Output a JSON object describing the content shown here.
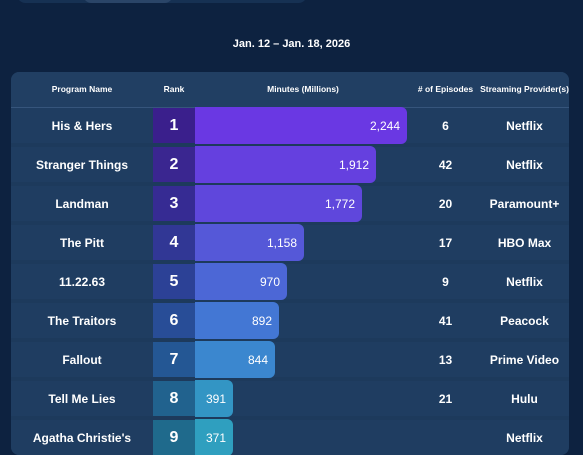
{
  "date_range": "Jan. 12 – Jan. 18, 2026",
  "headers": {
    "program": "Program Name",
    "rank": "Rank",
    "minutes": "Minutes (Millions)",
    "episodes": "# of Episodes",
    "provider": "Streaming Provider(s)"
  },
  "max_minutes": 2244,
  "rows": [
    {
      "program": "His & Hers",
      "rank": "1",
      "minutes": 2244,
      "minutes_label": "2,244",
      "episodes": "6",
      "provider": "Netflix",
      "rank_color": "#3a1f8c",
      "bar_color": "#6a38e3"
    },
    {
      "program": "Stranger Things",
      "rank": "2",
      "minutes": 1912,
      "minutes_label": "1,912",
      "episodes": "42",
      "provider": "Netflix",
      "rank_color": "#3a2690",
      "bar_color": "#6540df"
    },
    {
      "program": "Landman",
      "rank": "3",
      "minutes": 1772,
      "minutes_label": "1,772",
      "episodes": "20",
      "provider": "Paramount+",
      "rank_color": "#362b93",
      "bar_color": "#5f47dc"
    },
    {
      "program": "The Pitt",
      "rank": "4",
      "minutes": 1158,
      "minutes_label": "1,158",
      "episodes": "17",
      "provider": "HBO Max",
      "rank_color": "#313795",
      "bar_color": "#5558d8"
    },
    {
      "program": "11.22.63",
      "rank": "5",
      "minutes": 970,
      "minutes_label": "970",
      "episodes": "9",
      "provider": "Netflix",
      "rank_color": "#2c4196",
      "bar_color": "#4c67d6"
    },
    {
      "program": "The Traitors",
      "rank": "6",
      "minutes": 892,
      "minutes_label": "892",
      "episodes": "41",
      "provider": "Peacock",
      "rank_color": "#284d97",
      "bar_color": "#4377d4"
    },
    {
      "program": "Fallout",
      "rank": "7",
      "minutes": 844,
      "minutes_label": "844",
      "episodes": "13",
      "provider": "Prime Video",
      "rank_color": "#245794",
      "bar_color": "#3b87cf"
    },
    {
      "program": "Tell Me Lies",
      "rank": "8",
      "minutes": 391,
      "minutes_label": "391",
      "episodes": "21",
      "provider": "Hulu",
      "rank_color": "#21628e",
      "bar_color": "#3395c4"
    },
    {
      "program": "Agatha Christie's",
      "rank": "9",
      "minutes": 371,
      "minutes_label": "371",
      "episodes": "",
      "provider": "Netflix",
      "rank_color": "#1f6a8c",
      "bar_color": "#2f9fbf"
    }
  ]
}
